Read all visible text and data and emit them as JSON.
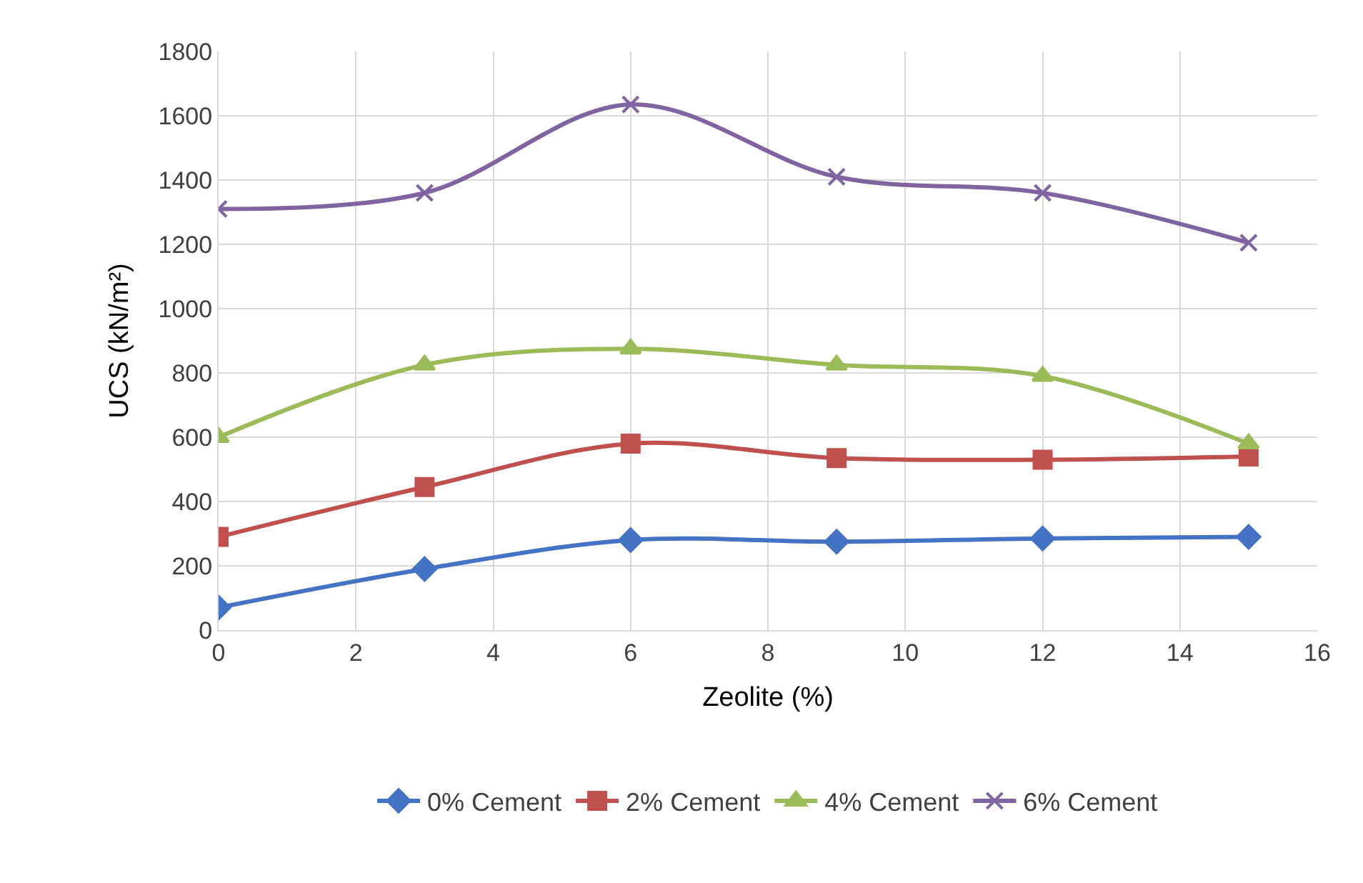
{
  "chart_data": {
    "type": "line",
    "xlabel": "Zeolite (%)",
    "ylabel": "UCS (kN/m²)",
    "x": [
      0,
      3,
      6,
      9,
      12,
      15
    ],
    "xlim": [
      0,
      16
    ],
    "xticks": [
      0,
      2,
      4,
      6,
      8,
      10,
      12,
      14,
      16
    ],
    "ylim": [
      0,
      1800
    ],
    "yticks": [
      0,
      200,
      400,
      600,
      800,
      1000,
      1200,
      1400,
      1600,
      1800
    ],
    "grid": true,
    "legend": "bottom",
    "series": [
      {
        "name": "0% Cement",
        "color": "#4472c4",
        "marker": "diamond",
        "values": [
          70,
          190,
          280,
          275,
          285,
          290
        ]
      },
      {
        "name": "2% Cement",
        "color": "#c0504d",
        "marker": "square",
        "values": [
          290,
          445,
          580,
          535,
          530,
          540
        ]
      },
      {
        "name": "4% Cement",
        "color": "#9bbb59",
        "marker": "triangle",
        "values": [
          600,
          825,
          875,
          825,
          790,
          580
        ]
      },
      {
        "name": "6% Cement",
        "color": "#8064a2",
        "marker": "cross",
        "values": [
          1310,
          1360,
          1635,
          1410,
          1360,
          1205
        ]
      }
    ]
  }
}
